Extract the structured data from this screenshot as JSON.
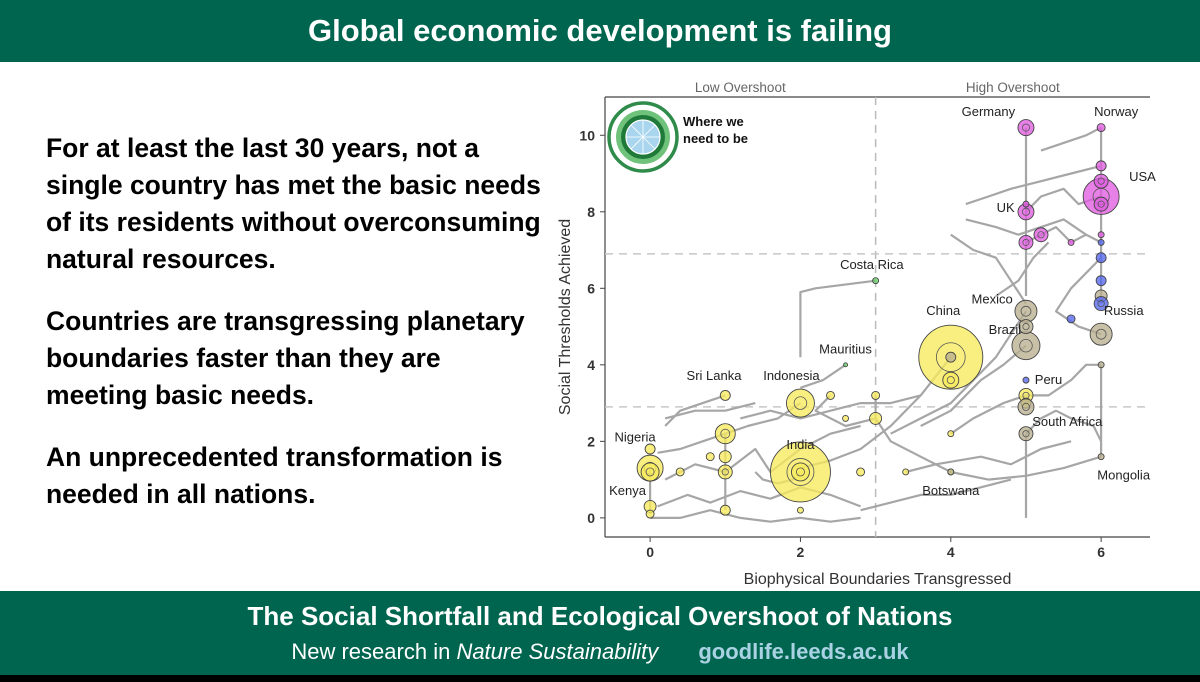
{
  "header": {
    "title": "Global economic development is failing"
  },
  "body": {
    "paragraphs": [
      "For at least the last 30 years, not a single country has met the basic needs of its residents without overconsuming natural resources.",
      "Countries are transgressing planetary boundaries faster than they are meeting basic needs.",
      "An unprecedented transformation is needed in all nations."
    ]
  },
  "footer": {
    "title": "The Social Shortfall and Ecological Overshoot of Nations",
    "prefix": "New research in",
    "journal": "Nature Sustainability",
    "url": "goodlife.leeds.ac.uk"
  },
  "colors": {
    "brand_green": "#00654f",
    "url_blue": "#a9d2e3",
    "low_income_yellow": "#f7eb5e",
    "middle_olive": "#b8b08f",
    "high_magenta": "#e05ce0",
    "blue_group": "#5566ee",
    "trajectory_gray": "#a6a6a6"
  },
  "chart_data": {
    "type": "scatter",
    "xlabel": "Biophysical Boundaries Transgressed",
    "ylabel": "Social Thresholds Achieved",
    "xlim": [
      -0.6,
      6.65
    ],
    "ylim": [
      -0.5,
      11
    ],
    "x_ticks": [
      0,
      2,
      4,
      6
    ],
    "y_ticks": [
      0,
      2,
      4,
      6,
      8,
      10
    ],
    "regions": [
      "Low Overshoot",
      "High Overshoot"
    ],
    "region_divider_x": 3,
    "threshold_lines_y": [
      2.9,
      6.9
    ],
    "grid": false,
    "legend": {
      "label": "Where we need to be",
      "position": "top-left"
    },
    "labels": [
      {
        "text": "Germany",
        "x": 4.5,
        "y": 10.5
      },
      {
        "text": "Norway",
        "x": 6.2,
        "y": 10.5
      },
      {
        "text": "USA",
        "x": 6.55,
        "y": 8.8
      },
      {
        "text": "UK",
        "x": 4.73,
        "y": 8.0
      },
      {
        "text": "Costa Rica",
        "x": 2.95,
        "y": 6.5
      },
      {
        "text": "Mexico",
        "x": 4.55,
        "y": 5.6
      },
      {
        "text": "China",
        "x": 3.9,
        "y": 5.3
      },
      {
        "text": "Russia",
        "x": 6.3,
        "y": 5.3
      },
      {
        "text": "Brazil",
        "x": 4.72,
        "y": 4.8
      },
      {
        "text": "Mauritius",
        "x": 2.6,
        "y": 4.3
      },
      {
        "text": "Sri Lanka",
        "x": 0.85,
        "y": 3.6
      },
      {
        "text": "Indonesia",
        "x": 1.88,
        "y": 3.6
      },
      {
        "text": "Peru",
        "x": 5.3,
        "y": 3.5
      },
      {
        "text": "South Africa",
        "x": 5.55,
        "y": 2.4
      },
      {
        "text": "Nigeria",
        "x": -0.2,
        "y": 2.0
      },
      {
        "text": "India",
        "x": 2.0,
        "y": 1.8
      },
      {
        "text": "Mongolia",
        "x": 6.3,
        "y": 1.0
      },
      {
        "text": "Botswana",
        "x": 4.0,
        "y": 0.6
      },
      {
        "text": "Kenya",
        "x": -0.3,
        "y": 0.6
      }
    ],
    "series": [
      {
        "color": "#f7eb5e",
        "points": [
          {
            "x": 2.0,
            "y": 1.2,
            "size": 30
          },
          {
            "x": 4.0,
            "y": 4.2,
            "size": 32
          },
          {
            "x": 2.0,
            "y": 3.0,
            "size": 14
          },
          {
            "x": 1.0,
            "y": 2.2,
            "size": 10
          },
          {
            "x": 0.0,
            "y": 1.3,
            "size": 13
          },
          {
            "x": 0.0,
            "y": 1.2,
            "size": 9
          },
          {
            "x": 2.0,
            "y": 1.2,
            "size": 9
          },
          {
            "x": 4.0,
            "y": 3.6,
            "size": 8
          },
          {
            "x": 3.0,
            "y": 2.6,
            "size": 6
          },
          {
            "x": 1.0,
            "y": 1.2,
            "size": 7
          },
          {
            "x": 1.0,
            "y": 1.6,
            "size": 6
          },
          {
            "x": 1.0,
            "y": 3.2,
            "size": 5
          },
          {
            "x": 0.0,
            "y": 0.3,
            "size": 6
          },
          {
            "x": 0.0,
            "y": 0.1,
            "size": 4
          },
          {
            "x": 1.0,
            "y": 0.2,
            "size": 5
          },
          {
            "x": 0.0,
            "y": 1.8,
            "size": 5
          },
          {
            "x": 3.0,
            "y": 3.2,
            "size": 4
          },
          {
            "x": 2.4,
            "y": 3.2,
            "size": 4
          },
          {
            "x": 2.8,
            "y": 1.2,
            "size": 4
          },
          {
            "x": 0.4,
            "y": 1.2,
            "size": 4
          },
          {
            "x": 0.8,
            "y": 1.6,
            "size": 4
          },
          {
            "x": 4.0,
            "y": 2.2,
            "size": 3
          },
          {
            "x": 3.4,
            "y": 1.2,
            "size": 3
          },
          {
            "x": 2.6,
            "y": 2.6,
            "size": 3
          },
          {
            "x": 2.0,
            "y": 0.2,
            "size": 3
          },
          {
            "x": 4.0,
            "y": 1.2,
            "size": 3
          },
          {
            "x": 5.0,
            "y": 3.2,
            "size": 7
          },
          {
            "x": 5.0,
            "y": 3.0,
            "size": 5
          }
        ]
      },
      {
        "color": "#b8b08f",
        "points": [
          {
            "x": 5.0,
            "y": 4.5,
            "size": 14
          },
          {
            "x": 5.0,
            "y": 5.4,
            "size": 11
          },
          {
            "x": 6.0,
            "y": 4.8,
            "size": 11
          },
          {
            "x": 5.0,
            "y": 2.9,
            "size": 8
          },
          {
            "x": 5.0,
            "y": 2.2,
            "size": 7
          },
          {
            "x": 5.0,
            "y": 5.0,
            "size": 7
          },
          {
            "x": 6.0,
            "y": 5.8,
            "size": 6
          },
          {
            "x": 4.0,
            "y": 4.2,
            "size": 5
          },
          {
            "x": 6.0,
            "y": 4.0,
            "size": 3
          },
          {
            "x": 6.0,
            "y": 1.6,
            "size": 3
          },
          {
            "x": 4.0,
            "y": 1.2,
            "size": 3
          }
        ]
      },
      {
        "color": "#e05ce0",
        "points": [
          {
            "x": 6.0,
            "y": 8.4,
            "size": 18
          },
          {
            "x": 5.0,
            "y": 10.2,
            "size": 8
          },
          {
            "x": 5.0,
            "y": 8.0,
            "size": 8
          },
          {
            "x": 5.2,
            "y": 7.4,
            "size": 7
          },
          {
            "x": 5.0,
            "y": 7.2,
            "size": 7
          },
          {
            "x": 6.0,
            "y": 8.8,
            "size": 7
          },
          {
            "x": 6.0,
            "y": 8.2,
            "size": 7
          },
          {
            "x": 6.0,
            "y": 9.2,
            "size": 5
          },
          {
            "x": 6.0,
            "y": 10.2,
            "size": 4
          },
          {
            "x": 6.0,
            "y": 7.4,
            "size": 3
          },
          {
            "x": 5.6,
            "y": 7.2,
            "size": 3
          },
          {
            "x": 5.0,
            "y": 8.2,
            "size": 3
          }
        ]
      },
      {
        "color": "#5566ee",
        "points": [
          {
            "x": 6.0,
            "y": 5.6,
            "size": 7
          },
          {
            "x": 6.0,
            "y": 6.8,
            "size": 5
          },
          {
            "x": 6.0,
            "y": 6.2,
            "size": 5
          },
          {
            "x": 5.6,
            "y": 5.2,
            "size": 4
          },
          {
            "x": 5.0,
            "y": 3.6,
            "size": 3
          },
          {
            "x": 6.0,
            "y": 7.2,
            "size": 3
          }
        ]
      },
      {
        "color": "#6ccf6c",
        "points": [
          {
            "x": 3.0,
            "y": 6.2,
            "size": 3
          },
          {
            "x": 2.6,
            "y": 4.0,
            "size": 2
          }
        ]
      }
    ],
    "trajectories": [
      [
        [
          2.0,
          1.2
        ],
        [
          1.9,
          1.0
        ],
        [
          1.7,
          0.9
        ],
        [
          1.5,
          1.0
        ],
        [
          1.4,
          1.2
        ]
      ],
      [
        [
          2.0,
          3.0
        ],
        [
          1.7,
          2.6
        ],
        [
          1.3,
          2.4
        ],
        [
          1.0,
          2.2
        ],
        [
          0.7,
          2.0
        ],
        [
          0.4,
          1.8
        ],
        [
          0.1,
          1.7
        ]
      ],
      [
        [
          4.0,
          4.2
        ],
        [
          3.6,
          3.2
        ],
        [
          3.2,
          2.4
        ],
        [
          2.8,
          1.8
        ],
        [
          2.4,
          1.5
        ],
        [
          2.0,
          1.3
        ]
      ],
      [
        [
          1.0,
          2.2
        ],
        [
          1.0,
          1.6
        ],
        [
          1.0,
          1.2
        ],
        [
          1.0,
          0.8
        ],
        [
          1.0,
          0.2
        ]
      ],
      [
        [
          0.0,
          1.3
        ],
        [
          0.0,
          0.9
        ],
        [
          0.0,
          0.5
        ],
        [
          0.0,
          0.1
        ]
      ],
      [
        [
          0.2,
          1.0
        ],
        [
          0.6,
          1.4
        ],
        [
          1.0,
          1.2
        ],
        [
          1.4,
          1.8
        ],
        [
          1.6,
          1.2
        ],
        [
          2.0,
          1.8
        ],
        [
          2.4,
          2.2
        ],
        [
          2.8,
          2.4
        ]
      ],
      [
        [
          0.1,
          0.3
        ],
        [
          0.5,
          0.6
        ],
        [
          0.8,
          0.4
        ],
        [
          1.2,
          0.7
        ],
        [
          1.6,
          0.5
        ],
        [
          2.0,
          0.8
        ],
        [
          2.4,
          0.6
        ],
        [
          2.8,
          0.3
        ]
      ],
      [
        [
          3.0,
          6.2
        ],
        [
          2.2,
          6.0
        ],
        [
          2.0,
          5.9
        ],
        [
          2.0,
          4.2
        ]
      ],
      [
        [
          2.6,
          4.0
        ],
        [
          2.3,
          3.6
        ],
        [
          2.0,
          3.4
        ]
      ],
      [
        [
          1.0,
          3.2
        ],
        [
          0.7,
          3.0
        ],
        [
          0.4,
          2.8
        ],
        [
          0.2,
          2.4
        ]
      ],
      [
        [
          2.4,
          3.2
        ],
        [
          2.2,
          2.8
        ],
        [
          2.6,
          2.4
        ],
        [
          3.0,
          2.6
        ]
      ],
      [
        [
          3.0,
          3.2
        ],
        [
          3.0,
          2.6
        ],
        [
          3.2,
          2.0
        ],
        [
          3.6,
          1.6
        ],
        [
          4.0,
          1.2
        ]
      ],
      [
        [
          3.4,
          1.2
        ],
        [
          3.8,
          1.4
        ],
        [
          4.4,
          1.6
        ],
        [
          4.8,
          1.4
        ],
        [
          5.2,
          1.8
        ],
        [
          5.6,
          2.0
        ]
      ],
      [
        [
          4.0,
          2.2
        ],
        [
          4.3,
          2.6
        ],
        [
          4.7,
          3.0
        ],
        [
          5.0,
          3.2
        ]
      ],
      [
        [
          5.0,
          2.2
        ],
        [
          5.2,
          2.6
        ],
        [
          5.4,
          2.8
        ],
        [
          5.6,
          2.6
        ],
        [
          5.9,
          2.4
        ],
        [
          6.0,
          2.0
        ]
      ],
      [
        [
          5.0,
          3.2
        ],
        [
          5.3,
          3.2
        ],
        [
          5.6,
          3.6
        ],
        [
          5.8,
          4.0
        ],
        [
          6.0,
          4.0
        ]
      ],
      [
        [
          5.0,
          5.4
        ],
        [
          4.8,
          4.8
        ],
        [
          4.6,
          4.2
        ],
        [
          4.4,
          3.8
        ],
        [
          4.2,
          3.4
        ],
        [
          4.0,
          3.0
        ],
        [
          3.6,
          2.6
        ],
        [
          3.2,
          2.2
        ]
      ],
      [
        [
          5.0,
          4.5
        ],
        [
          4.7,
          4.0
        ],
        [
          4.4,
          3.6
        ],
        [
          4.2,
          3.2
        ],
        [
          4.0,
          2.8
        ],
        [
          3.6,
          2.4
        ]
      ],
      [
        [
          6.0,
          4.8
        ],
        [
          5.7,
          5.0
        ],
        [
          5.4,
          5.4
        ],
        [
          5.6,
          6.0
        ],
        [
          5.8,
          6.4
        ],
        [
          6.0,
          6.8
        ]
      ],
      [
        [
          6.0,
          5.6
        ],
        [
          6.0,
          6.2
        ],
        [
          6.0,
          6.8
        ],
        [
          6.0,
          7.4
        ],
        [
          6.0,
          8.2
        ],
        [
          6.0,
          8.8
        ],
        [
          6.0,
          9.2
        ],
        [
          6.0,
          10.2
        ]
      ],
      [
        [
          5.0,
          7.2
        ],
        [
          5.2,
          7.4
        ],
        [
          5.4,
          7.6
        ],
        [
          5.6,
          7.2
        ],
        [
          5.8,
          7.4
        ],
        [
          6.0,
          7.2
        ]
      ],
      [
        [
          5.0,
          8.0
        ],
        [
          5.2,
          8.4
        ],
        [
          5.5,
          8.6
        ],
        [
          5.7,
          8.2
        ],
        [
          6.0,
          8.4
        ]
      ],
      [
        [
          5.0,
          10.2
        ],
        [
          5.0,
          9.4
        ],
        [
          5.0,
          8.6
        ],
        [
          5.0,
          8.0
        ],
        [
          5.0,
          7.2
        ],
        [
          5.0,
          6.4
        ],
        [
          5.0,
          5.8
        ]
      ],
      [
        [
          4.2,
          7.8
        ],
        [
          4.6,
          7.6
        ],
        [
          4.9,
          7.4
        ],
        [
          5.2,
          7.6
        ],
        [
          5.5,
          7.8
        ],
        [
          5.8,
          7.4
        ]
      ],
      [
        [
          4.0,
          7.4
        ],
        [
          4.3,
          7.0
        ],
        [
          4.6,
          6.8
        ],
        [
          4.8,
          6.2
        ],
        [
          5.0,
          5.6
        ]
      ],
      [
        [
          4.2,
          8.2
        ],
        [
          4.5,
          8.4
        ],
        [
          4.8,
          8.6
        ],
        [
          5.2,
          8.8
        ],
        [
          5.6,
          9.0
        ],
        [
          6.0,
          9.2
        ]
      ],
      [
        [
          5.2,
          9.6
        ],
        [
          5.5,
          9.8
        ],
        [
          5.8,
          10.0
        ],
        [
          6.0,
          10.2
        ]
      ],
      [
        [
          4.6,
          5.8
        ],
        [
          4.9,
          6.2
        ],
        [
          5.1,
          6.8
        ],
        [
          5.3,
          7.2
        ]
      ],
      [
        [
          6.0,
          4.0
        ],
        [
          6.0,
          3.2
        ],
        [
          6.0,
          2.6
        ],
        [
          6.0,
          1.6
        ]
      ],
      [
        [
          6.0,
          1.6
        ],
        [
          5.5,
          1.3
        ],
        [
          5.0,
          1.1
        ],
        [
          4.5,
          1.0
        ],
        [
          4.0,
          1.2
        ]
      ],
      [
        [
          5.0,
          0.0
        ],
        [
          5.0,
          0.8
        ],
        [
          5.0,
          1.6
        ],
        [
          5.0,
          2.2
        ]
      ],
      [
        [
          0.0,
          0.0
        ],
        [
          0.4,
          0.0
        ],
        [
          0.8,
          0.2
        ],
        [
          1.2,
          0.0
        ],
        [
          1.6,
          -0.1
        ],
        [
          2.0,
          0.0
        ],
        [
          2.4,
          -0.1
        ],
        [
          2.8,
          0.0
        ]
      ],
      [
        [
          2.8,
          0.2
        ],
        [
          3.2,
          0.4
        ],
        [
          3.6,
          0.6
        ],
        [
          4.0,
          0.6
        ],
        [
          4.4,
          0.8
        ],
        [
          4.8,
          1.0
        ]
      ],
      [
        [
          1.2,
          2.6
        ],
        [
          1.6,
          2.8
        ],
        [
          2.0,
          2.6
        ],
        [
          2.4,
          2.8
        ],
        [
          2.8,
          3.0
        ],
        [
          3.2,
          3.0
        ],
        [
          3.6,
          3.2
        ]
      ],
      [
        [
          0.2,
          2.6
        ],
        [
          0.6,
          2.8
        ],
        [
          1.0,
          2.8
        ],
        [
          1.4,
          3.0
        ]
      ]
    ]
  }
}
